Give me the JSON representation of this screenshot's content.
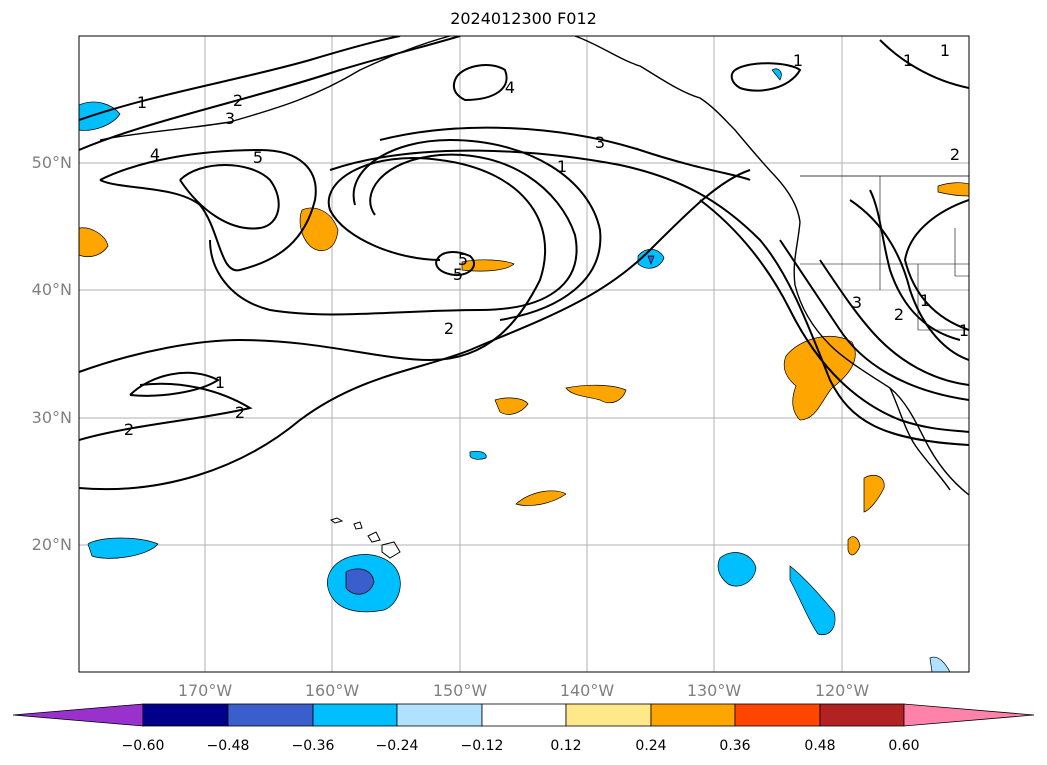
{
  "title": "2024012300 F012",
  "longitude_labels": [
    "170°W",
    "160°W",
    "150°W",
    "140°W",
    "130°W",
    "120°W"
  ],
  "latitude_labels": [
    "50°N",
    "40°N",
    "30°N",
    "20°N"
  ],
  "contour_labels": [
    "1",
    "2",
    "3",
    "4",
    "5",
    "4",
    "5",
    "5",
    "3",
    "1",
    "2",
    "2",
    "1",
    "2",
    "1",
    "3",
    "2",
    "1",
    "2",
    "1",
    "1",
    "1"
  ],
  "colorbar": {
    "ticks": [
      "−0.60",
      "−0.48",
      "−0.36",
      "−0.24",
      "−0.12",
      "0.12",
      "0.24",
      "0.36",
      "0.48",
      "0.60"
    ],
    "colors": [
      "#9932cc",
      "#00008b",
      "#3a5fcd",
      "#00bfff",
      "#b0e2ff",
      "#ffffff",
      "#ffe88a",
      "#ffa500",
      "#ff4500",
      "#b22222",
      "#ff82ab"
    ]
  },
  "fill_colors": {
    "neg_light": "#b0e2ff",
    "neg_mid": "#00bfff",
    "neg_dark": "#3a5fcd",
    "pos_light": "#ffe88a",
    "pos_mid": "#ffa500",
    "pos_dark": "#ff4500"
  }
}
